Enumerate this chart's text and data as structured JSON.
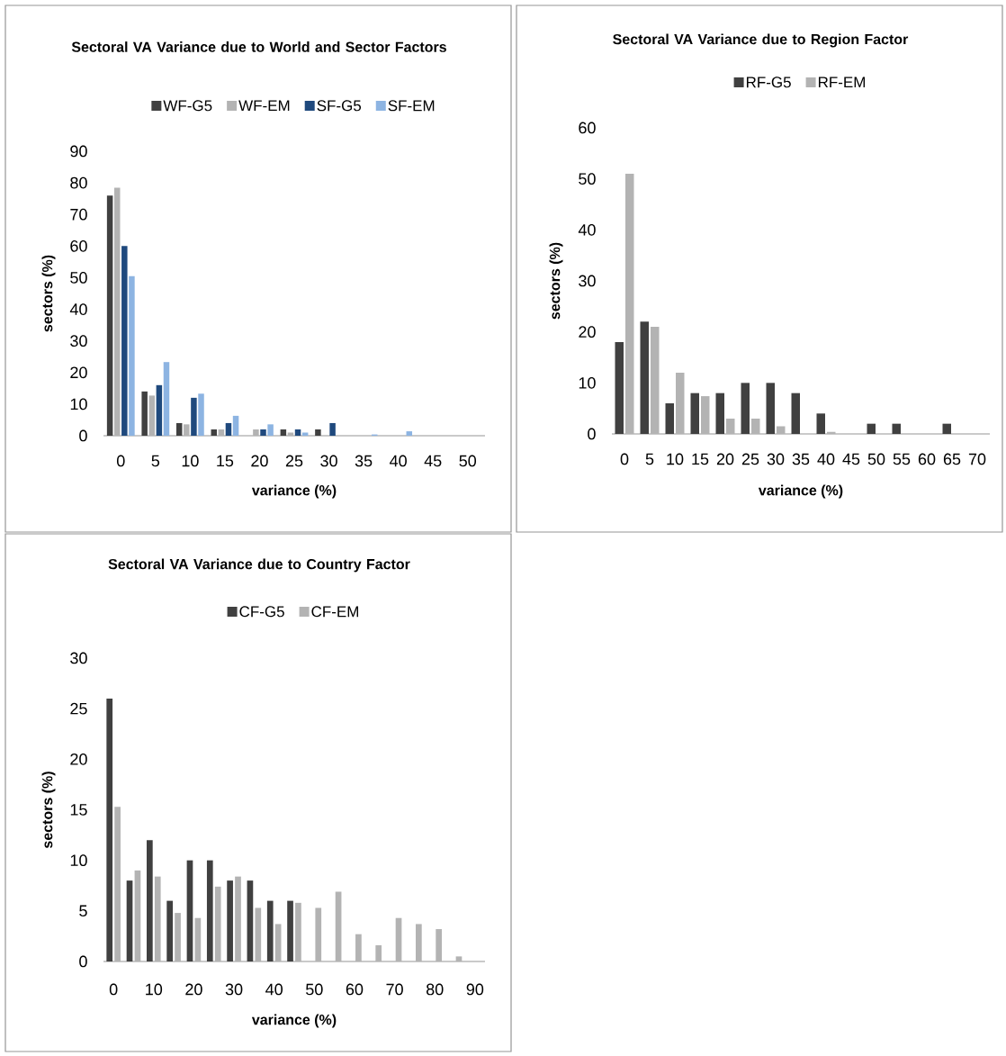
{
  "chart_data": [
    {
      "type": "bar",
      "title": "Sectoral VA Variance due to World and Sector Factors",
      "xlabel": "variance (%)",
      "ylabel": "sectors (%)",
      "categories": [
        "0",
        "5",
        "10",
        "15",
        "20",
        "25",
        "30",
        "35",
        "40",
        "45",
        "50"
      ],
      "series": [
        {
          "name": "WF-G5",
          "color": "#404040",
          "values": [
            76,
            14,
            4,
            2,
            0,
            2,
            2,
            0,
            0,
            0,
            0
          ]
        },
        {
          "name": "WF-EM",
          "color": "#b3b3b3",
          "values": [
            78.5,
            12.7,
            3.6,
            2,
            2,
            1,
            0,
            0,
            0,
            0,
            0
          ]
        },
        {
          "name": "SF-G5",
          "color": "#1f497d",
          "values": [
            60,
            16,
            12,
            4,
            2,
            2,
            4,
            0,
            0,
            0,
            0
          ]
        },
        {
          "name": "SF-EM",
          "color": "#8db4e2",
          "values": [
            50.5,
            23.3,
            13.3,
            6.3,
            3.6,
            1,
            0,
            0.4,
            1.4,
            0,
            0
          ]
        }
      ],
      "ylim": [
        0,
        90
      ],
      "yticks": [
        0,
        10,
        20,
        30,
        40,
        50,
        60,
        70,
        80,
        90
      ],
      "legend": "top"
    },
    {
      "type": "bar",
      "title": "Sectoral VA Variance due to Region Factor",
      "xlabel": "variance (%)",
      "ylabel": "sectors (%)",
      "categories": [
        "0",
        "5",
        "10",
        "15",
        "20",
        "25",
        "30",
        "35",
        "40",
        "45",
        "50",
        "55",
        "60",
        "65",
        "70"
      ],
      "series": [
        {
          "name": "RF-G5",
          "color": "#404040",
          "values": [
            18,
            22,
            6,
            8,
            8,
            10,
            10,
            8,
            4,
            0,
            2,
            2,
            0,
            2,
            0
          ]
        },
        {
          "name": "RF-EM",
          "color": "#b3b3b3",
          "values": [
            51,
            21,
            12,
            7.4,
            3,
            3,
            1.5,
            0,
            0.4,
            0,
            0,
            0,
            0,
            0,
            0
          ]
        }
      ],
      "ylim": [
        0,
        60
      ],
      "yticks": [
        0,
        10,
        20,
        30,
        40,
        50,
        60
      ],
      "legend": "top"
    },
    {
      "type": "bar",
      "title": "Sectoral VA Variance due to Country Factor",
      "xlabel": "variance (%)",
      "ylabel": "sectors (%)",
      "categories": [
        "0",
        null,
        "10",
        null,
        "20",
        null,
        "30",
        null,
        "40",
        null,
        "50",
        null,
        "60",
        null,
        "70",
        null,
        "80",
        null,
        "90"
      ],
      "series": [
        {
          "name": "CF-G5",
          "color": "#404040",
          "values": [
            26,
            8,
            12,
            6,
            10,
            10,
            8,
            8,
            6,
            6,
            0,
            0,
            0,
            0,
            0,
            0,
            0,
            0,
            0
          ]
        },
        {
          "name": "CF-EM",
          "color": "#b3b3b3",
          "values": [
            15.3,
            9,
            8.4,
            4.8,
            4.3,
            7.4,
            8.4,
            5.3,
            3.7,
            5.8,
            5.3,
            6.9,
            2.7,
            1.6,
            4.3,
            3.7,
            3.2,
            0.5,
            0
          ]
        }
      ],
      "ylim": [
        0,
        30
      ],
      "yticks": [
        0,
        5,
        10,
        15,
        20,
        25,
        30
      ],
      "legend": "top"
    }
  ]
}
